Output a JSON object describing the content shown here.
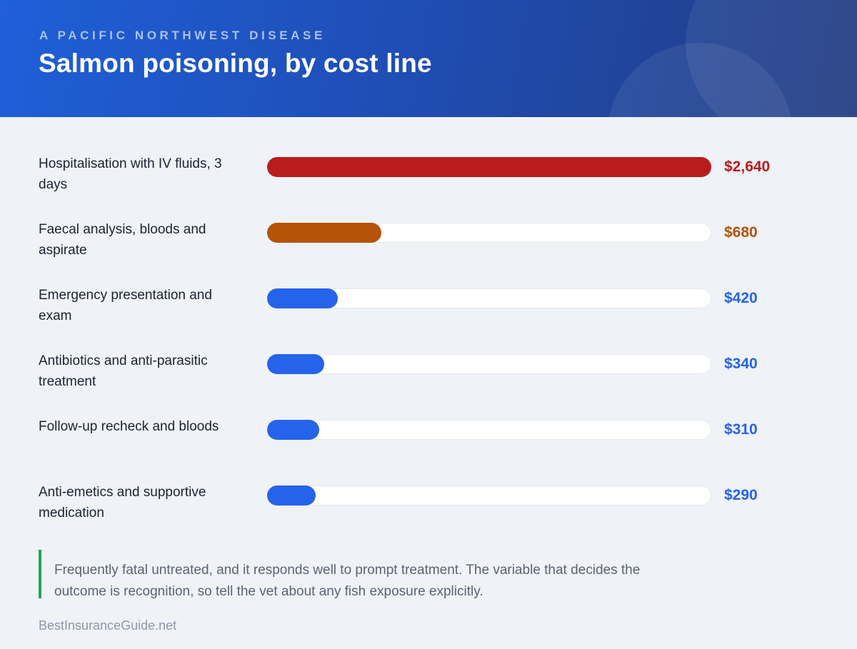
{
  "header": {
    "eyebrow": "A PACIFIC NORTHWEST DISEASE",
    "title": "Salmon poisoning, by cost line"
  },
  "chart_data": {
    "type": "bar",
    "orientation": "horizontal",
    "title": "Salmon poisoning, by cost line",
    "subtitle": "A PACIFIC NORTHWEST DISEASE",
    "xlim": [
      0,
      2640
    ],
    "grid": false,
    "categories": [
      "Hospitalisation with IV fluids, 3 days",
      "Faecal analysis, bloods and aspirate",
      "Emergency presentation and exam",
      "Antibiotics and anti-parasitic treatment",
      "Follow-up recheck and bloods",
      "Anti-emetics and supportive medication"
    ],
    "values": [
      2640,
      680,
      420,
      340,
      310,
      290
    ],
    "value_labels": [
      "$2,640",
      "$680",
      "$420",
      "$340",
      "$310",
      "$290"
    ],
    "colors": [
      "#b91c1c",
      "#b45309",
      "#2563eb",
      "#2563eb",
      "#2563eb",
      "#2563eb"
    ]
  },
  "rows": [
    {
      "label": "Hospitalisation with IV fluids, 3 days",
      "value_label": "$2,640"
    },
    {
      "label": "Faecal analysis, bloods and aspirate",
      "value_label": "$680"
    },
    {
      "label": "Emergency presentation and exam",
      "value_label": "$420"
    },
    {
      "label": "Antibiotics and anti-parasitic treatment",
      "value_label": "$340"
    },
    {
      "label": "Follow-up recheck and bloods",
      "value_label": "$310"
    },
    {
      "label": "Anti-emetics and supportive medication",
      "value_label": "$290"
    }
  ],
  "note": "Frequently fatal untreated, and it responds well to prompt treatment. The variable that decides the outcome is recognition, so tell the vet about any fish exposure explicitly.",
  "source": "BestInsuranceGuide.net"
}
